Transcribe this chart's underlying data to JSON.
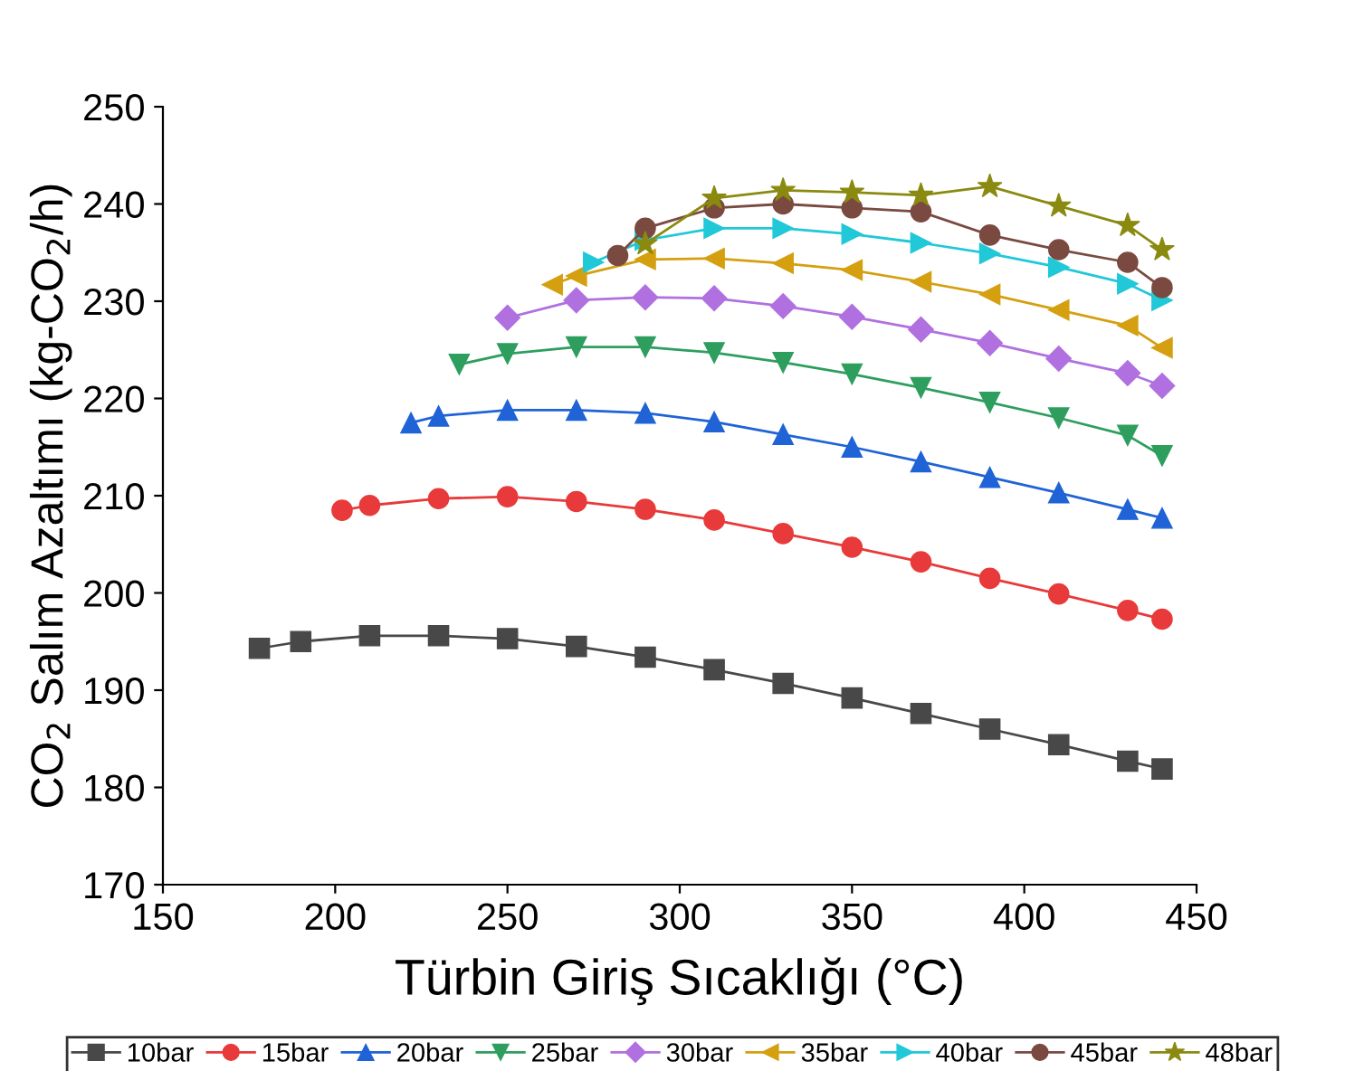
{
  "chart_data": {
    "type": "line",
    "xlabel": "Türbin Giriş Sıcaklığı (°C)",
    "ylabel": "CO$_{2}$ Salım Azaltımı (kg-CO$_{2}$/h)",
    "xlim": [
      150,
      450
    ],
    "xticks": [
      150,
      200,
      250,
      300,
      350,
      400,
      450
    ],
    "ylim": [
      170,
      250
    ],
    "yticks": [
      170,
      180,
      190,
      200,
      210,
      220,
      230,
      240,
      250
    ],
    "grid": false,
    "legend": "bottom",
    "line_style": "solid",
    "series": [
      {
        "name": "10bar",
        "color": "#484848",
        "marker": "square",
        "x": [
          178,
          190,
          210,
          230,
          250,
          270,
          290,
          310,
          330,
          350,
          370,
          390,
          410,
          430,
          440
        ],
        "values": [
          194.3,
          195.0,
          195.6,
          195.6,
          195.3,
          194.5,
          193.4,
          192.1,
          190.7,
          189.2,
          187.6,
          186.0,
          184.4,
          182.7,
          181.9
        ]
      },
      {
        "name": "15bar",
        "color": "#e83a3a",
        "marker": "circle",
        "x": [
          202,
          210,
          230,
          250,
          270,
          290,
          310,
          330,
          350,
          370,
          390,
          410,
          430,
          440
        ],
        "values": [
          208.5,
          209.0,
          209.7,
          209.9,
          209.4,
          208.6,
          207.5,
          206.1,
          204.7,
          203.2,
          201.5,
          199.9,
          198.2,
          197.3
        ]
      },
      {
        "name": "20bar",
        "color": "#1f63d6",
        "marker": "triangle",
        "x": [
          222,
          230,
          250,
          270,
          290,
          310,
          330,
          350,
          370,
          390,
          410,
          430,
          440
        ],
        "values": [
          217.5,
          218.2,
          218.8,
          218.8,
          218.5,
          217.6,
          216.3,
          215.0,
          213.5,
          211.9,
          210.3,
          208.6,
          207.7
        ]
      },
      {
        "name": "25bar",
        "color": "#2e9e5e",
        "marker": "triangle_down",
        "x": [
          236,
          250,
          270,
          290,
          310,
          330,
          350,
          370,
          390,
          410,
          430,
          440
        ],
        "values": [
          223.5,
          224.6,
          225.3,
          225.3,
          224.7,
          223.7,
          222.5,
          221.1,
          219.6,
          218.0,
          216.2,
          214.1
        ]
      },
      {
        "name": "30bar",
        "color": "#b070e0",
        "marker": "diamond",
        "x": [
          250,
          270,
          290,
          310,
          330,
          350,
          370,
          390,
          410,
          430,
          440
        ],
        "values": [
          228.3,
          230.1,
          230.4,
          230.3,
          229.5,
          228.4,
          227.1,
          225.7,
          224.1,
          222.6,
          221.3
        ]
      },
      {
        "name": "35bar",
        "color": "#d4a010",
        "marker": "triangle_left",
        "x": [
          263,
          270,
          290,
          310,
          330,
          350,
          370,
          390,
          410,
          430,
          440
        ],
        "values": [
          231.7,
          232.6,
          234.3,
          234.4,
          233.9,
          233.2,
          232.0,
          230.7,
          229.1,
          227.5,
          225.2
        ]
      },
      {
        "name": "40bar",
        "color": "#20c8d8",
        "marker": "triangle_right",
        "x": [
          275,
          290,
          310,
          330,
          350,
          370,
          390,
          410,
          430,
          440
        ],
        "values": [
          234.0,
          236.3,
          237.5,
          237.5,
          236.9,
          236.0,
          234.9,
          233.5,
          231.8,
          230.1
        ]
      },
      {
        "name": "45bar",
        "color": "#7a4a40",
        "marker": "circle",
        "x": [
          282,
          290,
          310,
          330,
          350,
          370,
          390,
          410,
          430,
          440
        ],
        "values": [
          234.7,
          237.5,
          239.6,
          240.0,
          239.6,
          239.2,
          236.8,
          235.3,
          234.0,
          231.4
        ]
      },
      {
        "name": "48bar",
        "color": "#8a8a10",
        "marker": "star",
        "x": [
          290,
          310,
          330,
          350,
          370,
          390,
          410,
          430,
          440
        ],
        "values": [
          235.9,
          240.6,
          241.4,
          241.2,
          240.9,
          241.8,
          239.8,
          237.8,
          235.3
        ]
      }
    ]
  }
}
